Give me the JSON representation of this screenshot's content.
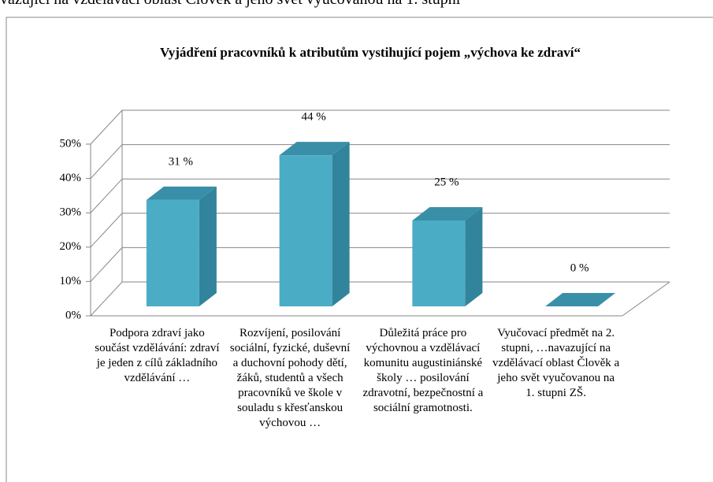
{
  "header_text": "vazující na vzdělávací oblast Člověk a jeho svět vyučovanou na 1. stupni",
  "chart_data": {
    "type": "bar3d",
    "title": "Vyjádření pracovníků k atributům vystihující pojem „výchova ke zdraví“",
    "categories": [
      "Podpora zdraví jako součást vzdělávání: zdraví je jeden z cílů základního vzdělávání …",
      "Rozvíjení, posilování sociální, fyzické, duševní a duchovní pohody dětí, žáků, studentů a všech pracovníků ve škole v souladu s křesťanskou výchovou …",
      "Důležitá práce pro výchovnou a vzdělávací komunitu augustiniánské školy … posilování zdravotní, bezpečnostní a sociální gramotnosti.",
      "Vyučovací předmět na 2. stupni, …navazující na vzdělávací oblast Člověk a jeho svět vyučovanou na 1. stupni ZŠ."
    ],
    "values": [
      31,
      44,
      25,
      0
    ],
    "value_labels": [
      "31 %",
      "44 %",
      "25 %",
      "0 %"
    ],
    "color": "#4bacc6",
    "ylim": [
      0,
      50
    ],
    "yticks": [
      {
        "value": 0,
        "label": "0%"
      },
      {
        "value": 10,
        "label": "10%"
      },
      {
        "value": 20,
        "label": "20%"
      },
      {
        "value": 30,
        "label": "30%"
      },
      {
        "value": 40,
        "label": "40%"
      },
      {
        "value": 50,
        "label": "50%"
      }
    ],
    "grid": true
  }
}
